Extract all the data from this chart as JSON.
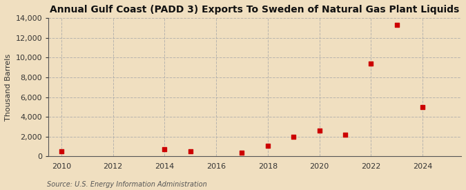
{
  "title": "Annual Gulf Coast (PADD 3) Exports To Sweden of Natural Gas Plant Liquids",
  "ylabel": "Thousand Barrels",
  "source": "Source: U.S. Energy Information Administration",
  "background_color": "#f0dfc0",
  "plot_background_color": "#f0dfc0",
  "years": [
    2010,
    2014,
    2015,
    2017,
    2018,
    2019,
    2020,
    2021,
    2022,
    2023,
    2024
  ],
  "values": [
    500,
    700,
    500,
    400,
    1100,
    2000,
    2600,
    2200,
    9400,
    13300,
    5000
  ],
  "marker_color": "#cc0000",
  "marker": "s",
  "marker_size": 4,
  "xlim": [
    2009.5,
    2025.5
  ],
  "ylim": [
    0,
    14000
  ],
  "yticks": [
    0,
    2000,
    4000,
    6000,
    8000,
    10000,
    12000,
    14000
  ],
  "xticks": [
    2010,
    2012,
    2014,
    2016,
    2018,
    2020,
    2022,
    2024
  ],
  "grid_color": "#aaaaaa",
  "grid_style": "--",
  "grid_alpha": 0.8,
  "title_fontsize": 10,
  "tick_fontsize": 8,
  "ylabel_fontsize": 8,
  "source_fontsize": 7
}
